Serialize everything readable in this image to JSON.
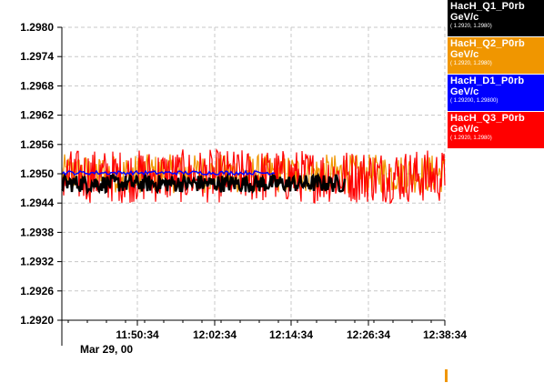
{
  "chart_data": {
    "type": "line",
    "y_ticks": [
      "1.2980",
      "1.2974",
      "1.2968",
      "1.2962",
      "1.2956",
      "1.2950",
      "1.2944",
      "1.2938",
      "1.2932",
      "1.2926",
      "1.2920"
    ],
    "ylim": [
      1.292,
      1.298
    ],
    "x_ticks": [
      "11:50:34",
      "12:02:34",
      "12:14:34",
      "12:26:34",
      "12:38:34"
    ],
    "date_label": "Mar 29, 00",
    "grid": true,
    "legend_placement": "top-right",
    "series": [
      {
        "name": "HacH_Q1_P0rb",
        "unit": "GeV/c",
        "range": "( 1.2920, 1.2980)",
        "color": "#000000",
        "mean": 1.2948,
        "noise": 0.00018,
        "x_end": 0.74
      },
      {
        "name": "HacH_Q2_P0rb",
        "unit": "GeV/c",
        "range": "( 1.2920, 1.2980)",
        "color": "#f09600",
        "mean": 1.295,
        "noise": 0.0004,
        "x_end": 1.0
      },
      {
        "name": "HacH_D1_P0rb",
        "unit": "GeV/c",
        "range": "( 1.29200, 1.29800)",
        "color": "#0000ff",
        "mean": 1.29502,
        "noise": 4e-05,
        "x_end": 0.56
      },
      {
        "name": "HacH_Q3_P0rb",
        "unit": "GeV/c",
        "range": "( 1.2920, 1.2980)",
        "color": "#ff0000",
        "mean": 1.29495,
        "noise": 0.00055,
        "x_end": 1.0
      }
    ]
  }
}
